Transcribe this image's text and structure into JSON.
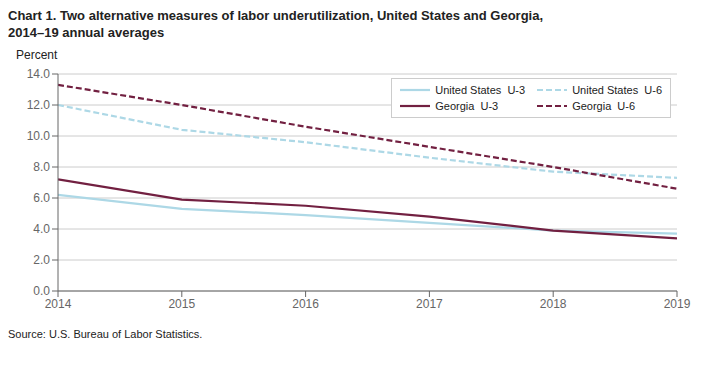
{
  "chart_data": {
    "type": "line",
    "title": "Chart 1. Two alternative measures of labor underutilization, United States and Georgia,\n2014–19 annual averages",
    "ylabel": "Percent",
    "annotations": [
      "Source: U.S. Bureau of Labor Statistics."
    ],
    "x": [
      2014,
      2015,
      2016,
      2017,
      2018,
      2019
    ],
    "xlim": [
      2014,
      2019
    ],
    "xticks": [
      2014,
      2015,
      2016,
      2017,
      2018,
      2019
    ],
    "ylim": [
      0.0,
      14.0
    ],
    "yticks": [
      {
        "value": 0,
        "label": "0.0"
      },
      {
        "value": 2,
        "label": "2.0"
      },
      {
        "value": 4,
        "label": "4.0"
      },
      {
        "value": 6,
        "label": "6.0"
      },
      {
        "value": 8,
        "label": "8.0"
      },
      {
        "value": 10,
        "label": "10.0"
      },
      {
        "value": 12,
        "label": "12.0"
      },
      {
        "value": 14,
        "label": "14.0"
      }
    ],
    "grid": true,
    "legend": "upper right",
    "series": [
      {
        "name": "United States  U-3",
        "color": "#add8e6",
        "line_style": "solid",
        "values": [
          6.2,
          5.3,
          4.9,
          4.4,
          3.9,
          3.7
        ]
      },
      {
        "name": "United States  U-6",
        "color": "#add8e6",
        "line_style": "dashed",
        "values": [
          12.0,
          10.4,
          9.6,
          8.6,
          7.7,
          7.3
        ]
      },
      {
        "name": "Georgia  U-3",
        "color": "#722041",
        "line_style": "solid",
        "values": [
          7.2,
          5.9,
          5.5,
          4.8,
          3.9,
          3.4
        ]
      },
      {
        "name": "Georgia  U-6",
        "color": "#722041",
        "line_style": "dashed",
        "values": [
          13.3,
          12.0,
          10.6,
          9.3,
          8.0,
          6.6
        ]
      }
    ]
  }
}
